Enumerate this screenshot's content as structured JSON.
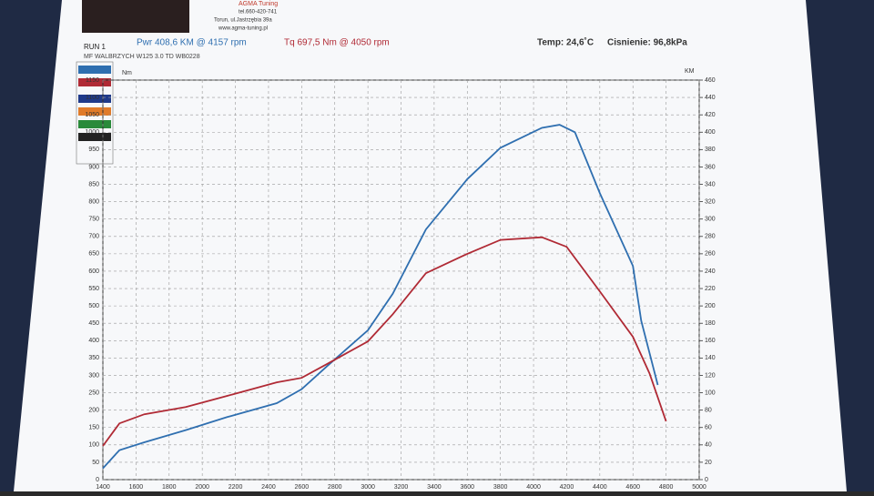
{
  "chart_data": {
    "type": "line",
    "shop_name": "AGMA Tuning",
    "shop_phone": "tel.660-420-741",
    "shop_address": "Torun, ul.Jastrzębia 39a",
    "shop_web": "www.agma-tuning.pl",
    "run": "RUN 1",
    "power_peak": "Pwr  408,6 KM @ 4157 rpm",
    "torque_peak": "Tq  697,5 Nm @ 4050 rpm",
    "temperature": "Temp: 24,6˚C",
    "pressure": "Cisnienie: 96,8kPa",
    "vehicle": "MF WALBRZYCH W125 3.0 TD WB0228",
    "ylabel": "Nm",
    "y2label": "KM",
    "xlim": [
      1400,
      5000
    ],
    "xticks": [
      1400,
      1600,
      1800,
      2000,
      2200,
      2400,
      2600,
      2800,
      3000,
      3200,
      3400,
      3600,
      3800,
      4000,
      4200,
      4400,
      4600,
      4800,
      5000
    ],
    "ylim": [
      0,
      1150
    ],
    "yticks": [
      0,
      50,
      100,
      150,
      200,
      250,
      300,
      350,
      400,
      450,
      500,
      550,
      600,
      650,
      700,
      750,
      800,
      850,
      900,
      950,
      1000,
      1050,
      1100,
      1150
    ],
    "y2lim": [
      0,
      460
    ],
    "y2ticks": [
      0,
      20,
      40,
      60,
      80,
      100,
      120,
      140,
      160,
      180,
      200,
      220,
      240,
      260,
      280,
      300,
      320,
      340,
      360,
      380,
      400,
      420,
      440,
      460
    ],
    "grid": true,
    "series": [
      {
        "color": "#2f6fb0",
        "axis": "y2",
        "x": [
          1400,
          1500,
          1650,
          1900,
          2150,
          2450,
          2600,
          2750,
          3000,
          3150,
          3350,
          3600,
          3800,
          4050,
          4157,
          4250,
          4400,
          4600,
          4650,
          4750
        ],
        "values": [
          13,
          34,
          43,
          57,
          72,
          88,
          104,
          130,
          172,
          214,
          288,
          346,
          382,
          405,
          408.6,
          400,
          330,
          246,
          183,
          109
        ]
      },
      {
        "color": "#b02a35",
        "x": [
          1400,
          1500,
          1650,
          1900,
          2150,
          2450,
          2600,
          2750,
          3000,
          3150,
          3350,
          3600,
          3800,
          4050,
          4200,
          4400,
          4600,
          4700,
          4800
        ],
        "values": [
          97,
          162,
          188,
          209,
          241,
          280,
          293,
          332,
          398,
          476,
          594,
          650,
          690,
          697.5,
          670,
          542,
          411,
          306,
          168
        ]
      }
    ]
  }
}
